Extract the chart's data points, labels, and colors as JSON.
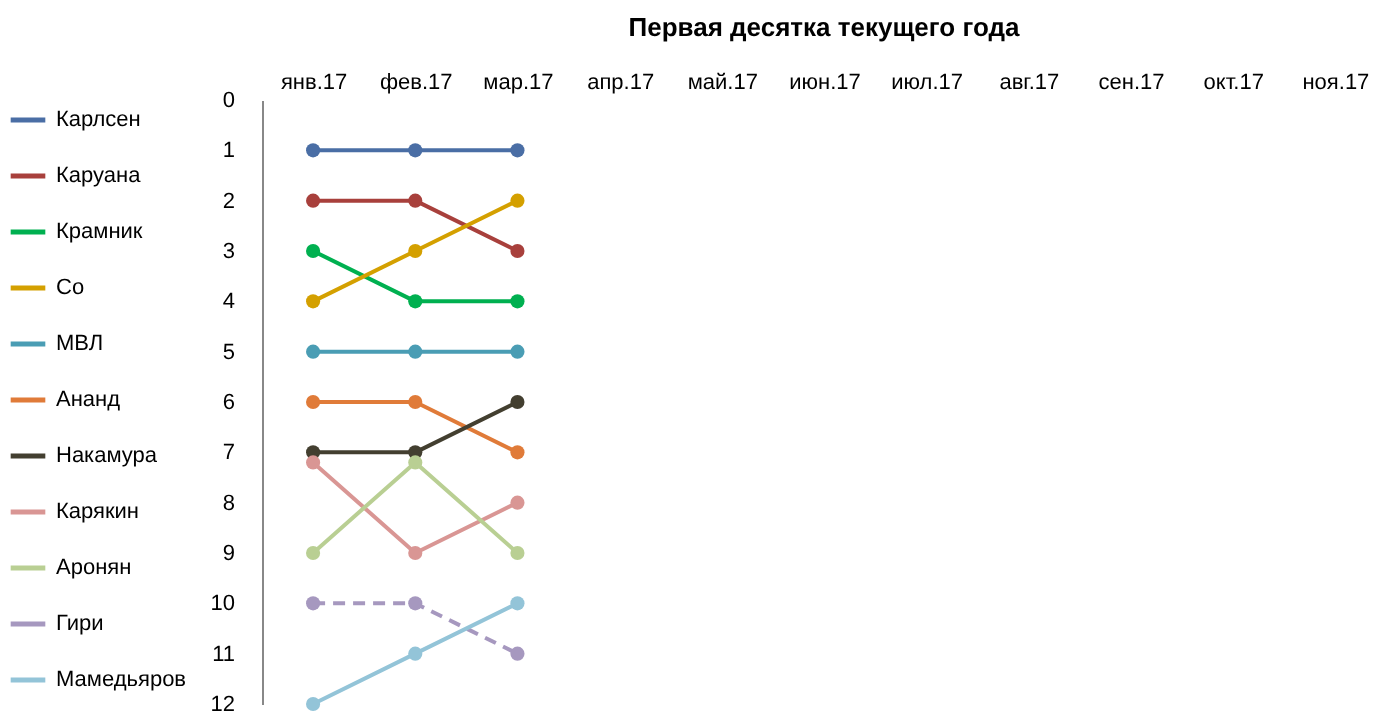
{
  "chart_data": {
    "type": "line",
    "title": "Первая десятка текущего года",
    "categories": [
      "янв.17",
      "фев.17",
      "мар.17",
      "апр.17",
      "май.17",
      "июн.17",
      "июл.17",
      "авг.17",
      "сен.17",
      "окт.17",
      "ноя.17"
    ],
    "ylim": [
      12,
      0
    ],
    "yticks": [
      0,
      1,
      2,
      3,
      4,
      5,
      6,
      7,
      8,
      9,
      10,
      11,
      12
    ],
    "grid": false,
    "legend": "left",
    "marker": "circle",
    "line_style": "solid",
    "series": [
      {
        "name": "Карлсен",
        "color": "#4a6ea5",
        "values": [
          1,
          1,
          1,
          null,
          null,
          null,
          null,
          null,
          null,
          null,
          null
        ]
      },
      {
        "name": "Каруана",
        "color": "#a8403c",
        "values": [
          2,
          2,
          3,
          null,
          null,
          null,
          null,
          null,
          null,
          null,
          null
        ]
      },
      {
        "name": "Крамник",
        "color": "#00b050",
        "values": [
          3,
          4,
          4,
          null,
          null,
          null,
          null,
          null,
          null,
          null,
          null
        ]
      },
      {
        "name": "Со",
        "color": "#d4a000",
        "values": [
          4,
          3,
          2,
          null,
          null,
          null,
          null,
          null,
          null,
          null,
          null
        ]
      },
      {
        "name": "МВЛ",
        "color": "#4a9db4",
        "values": [
          5,
          5,
          5,
          null,
          null,
          null,
          null,
          null,
          null,
          null,
          null
        ]
      },
      {
        "name": "Ананд",
        "color": "#e07b39",
        "values": [
          6,
          6,
          7,
          null,
          null,
          null,
          null,
          null,
          null,
          null,
          null
        ]
      },
      {
        "name": "Накамура",
        "color": "#433f30",
        "values": [
          7,
          7,
          6,
          null,
          null,
          null,
          null,
          null,
          null,
          null,
          null
        ]
      },
      {
        "name": "Карякин",
        "color": "#d99694",
        "values": [
          7.2,
          9,
          8,
          null,
          null,
          null,
          null,
          null,
          null,
          null,
          null
        ]
      },
      {
        "name": "Аронян",
        "color": "#b9cf93",
        "values": [
          9,
          7.2,
          9,
          null,
          null,
          null,
          null,
          null,
          null,
          null,
          null
        ]
      },
      {
        "name": "Гири",
        "color": "#a698bf",
        "line_style": "dashed",
        "values": [
          10,
          10,
          11,
          null,
          null,
          null,
          null,
          null,
          null,
          null,
          null
        ]
      },
      {
        "name": "Мамедьяров",
        "color": "#93c4d8",
        "values": [
          12,
          11,
          10,
          null,
          null,
          null,
          null,
          null,
          null,
          null,
          null
        ]
      }
    ]
  }
}
